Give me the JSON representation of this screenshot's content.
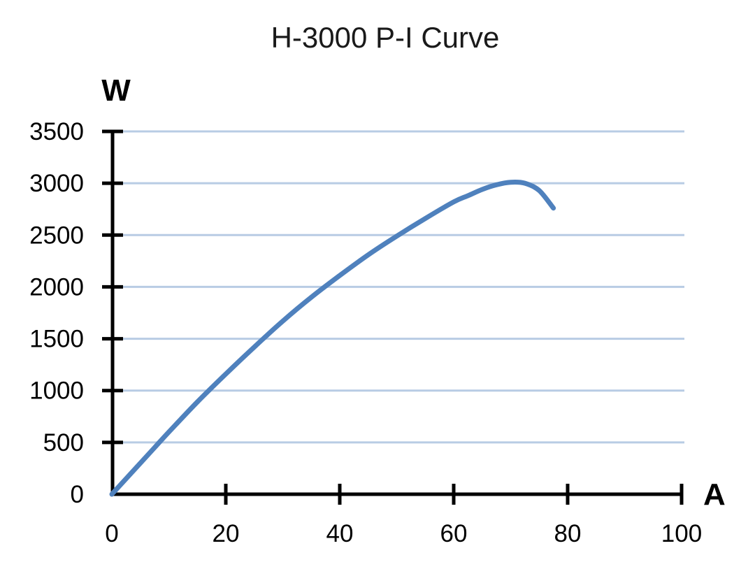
{
  "title": "H-3000 P-I Curve",
  "chart_data": {
    "type": "line",
    "title": "H-3000 P-I Curve",
    "xlabel": "A",
    "ylabel": "W",
    "xlim": [
      0,
      100
    ],
    "ylim": [
      0,
      3500
    ],
    "x_ticks": [
      0,
      20,
      40,
      60,
      80,
      100
    ],
    "y_ticks": [
      0,
      500,
      1000,
      1500,
      2000,
      2500,
      3000,
      3500
    ],
    "grid": "horizontal",
    "legend": "none",
    "series": [
      {
        "name": "P-I curve",
        "x": [
          0,
          2.5,
          5,
          7.5,
          10,
          15,
          20,
          25,
          30,
          35,
          40,
          45,
          50,
          55,
          60,
          62.5,
          65,
          67.5,
          70,
          72.5,
          75,
          77.5
        ],
        "y": [
          0,
          150,
          300,
          450,
          600,
          890,
          1160,
          1420,
          1670,
          1900,
          2110,
          2310,
          2490,
          2660,
          2820,
          2880,
          2940,
          2985,
          3010,
          3000,
          2930,
          2760
        ]
      }
    ],
    "colors": {
      "curve": "#4f81bd",
      "grid": "#b8cce4",
      "axis": "#000000"
    }
  }
}
